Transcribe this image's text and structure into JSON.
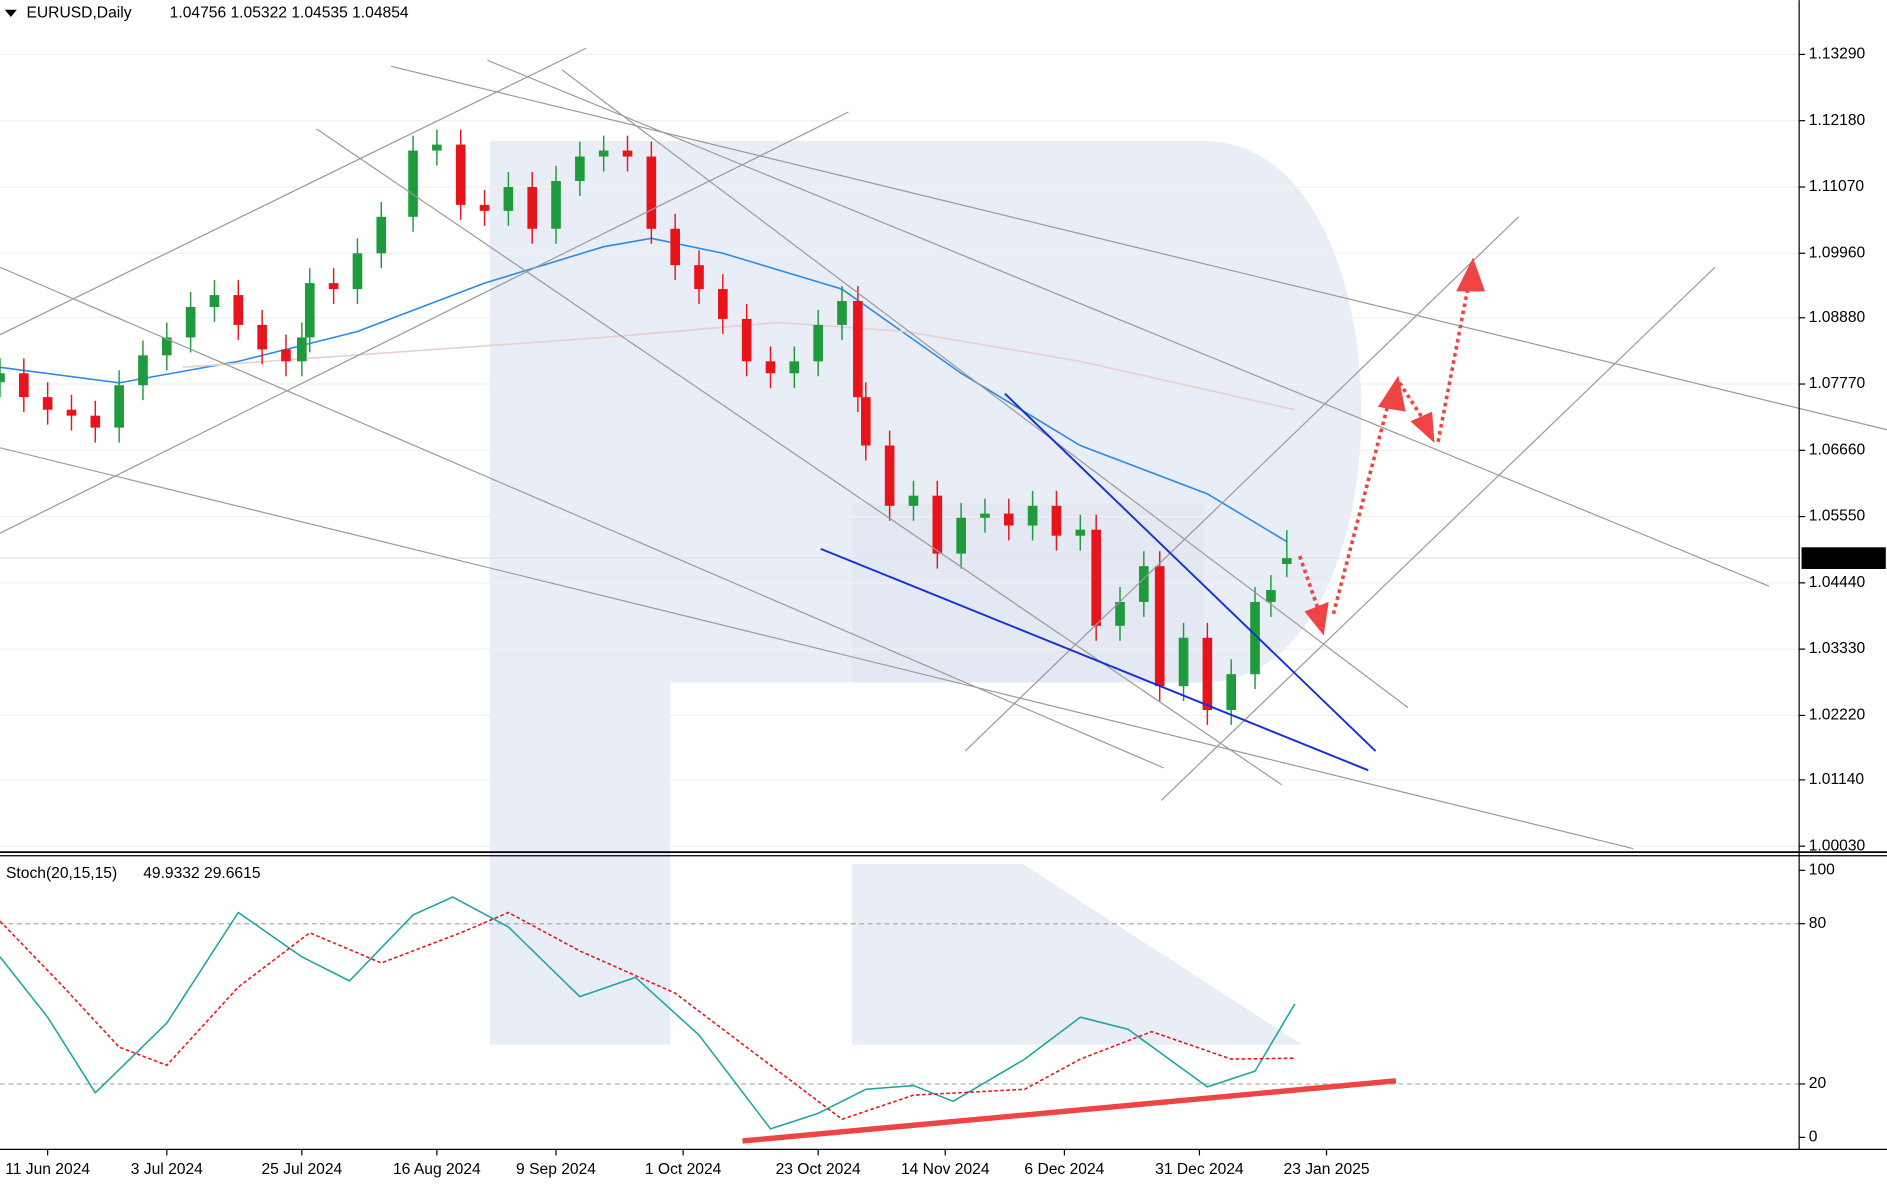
{
  "chart_data": [
    {
      "type": "candlestick",
      "title": "EURUSD,Daily",
      "subtitle": "1.04756 1.05322 1.04535 1.04854",
      "x": [
        0,
        3,
        6,
        9,
        12,
        15,
        18,
        21,
        24,
        27,
        30,
        33,
        36,
        38,
        39,
        42,
        45,
        48,
        52,
        55,
        58,
        61,
        64,
        67,
        70,
        73,
        76,
        79,
        82,
        85,
        88,
        91,
        94,
        97,
        100,
        103,
        106,
        108,
        109,
        112,
        115,
        118,
        121,
        124,
        127,
        130,
        133,
        136,
        138,
        141,
        144,
        146,
        149,
        152,
        155,
        158,
        160,
        162
      ],
      "open": [
        1.078,
        1.0795,
        1.0755,
        1.0734,
        1.0724,
        1.0704,
        1.0775,
        1.0825,
        1.0855,
        1.0906,
        1.0926,
        1.0876,
        1.0835,
        1.0815,
        1.0855,
        1.0946,
        1.0936,
        1.0996,
        1.1057,
        1.1168,
        1.1178,
        1.1077,
        1.1067,
        1.1107,
        1.1037,
        1.1117,
        1.1158,
        1.1168,
        1.1158,
        1.1037,
        1.0976,
        1.0936,
        1.0886,
        1.0815,
        1.0795,
        1.0815,
        1.0876,
        1.0916,
        1.0755,
        1.0674,
        1.0573,
        1.059,
        1.0493,
        1.0553,
        1.056,
        1.054,
        1.0573,
        1.0523,
        1.0533,
        1.0372,
        1.0412,
        1.0472,
        1.0271,
        1.0352,
        1.0231,
        1.0291,
        1.0412,
        1.04756
      ],
      "high": [
        1.082,
        1.082,
        1.078,
        1.0759,
        1.0749,
        1.08,
        1.085,
        1.088,
        1.0931,
        1.0951,
        1.0951,
        1.0901,
        1.086,
        1.088,
        1.0971,
        1.0971,
        1.1021,
        1.1082,
        1.1193,
        1.1203,
        1.1203,
        1.1102,
        1.1132,
        1.1132,
        1.1142,
        1.1183,
        1.1193,
        1.1193,
        1.1183,
        1.1062,
        1.1001,
        1.0961,
        1.0911,
        1.084,
        1.084,
        1.0901,
        1.0941,
        1.0941,
        1.078,
        1.0699,
        1.0615,
        1.0615,
        1.0578,
        1.0585,
        1.0585,
        1.0598,
        1.0598,
        1.0558,
        1.0558,
        1.0437,
        1.0497,
        1.0497,
        1.0377,
        1.0377,
        1.0316,
        1.0437,
        1.0457,
        1.05322
      ],
      "low": [
        1.0755,
        1.073,
        1.0709,
        1.0699,
        1.0679,
        1.0679,
        1.075,
        1.08,
        1.083,
        1.0881,
        1.0851,
        1.081,
        1.079,
        1.079,
        1.083,
        1.0911,
        1.0911,
        1.0971,
        1.1032,
        1.1143,
        1.1052,
        1.1042,
        1.1042,
        1.1012,
        1.1012,
        1.1092,
        1.1133,
        1.1133,
        1.1012,
        1.0951,
        1.0911,
        1.0861,
        1.079,
        1.077,
        1.077,
        1.079,
        1.0851,
        1.073,
        1.0649,
        1.0548,
        1.0548,
        1.0468,
        1.0468,
        1.0528,
        1.0515,
        1.0515,
        1.0498,
        1.0498,
        1.0347,
        1.0347,
        1.0387,
        1.0246,
        1.0246,
        1.0206,
        1.0206,
        1.0266,
        1.0387,
        1.04535
      ],
      "close": [
        1.0795,
        1.0755,
        1.0734,
        1.0724,
        1.0704,
        1.0775,
        1.0825,
        1.0855,
        1.0906,
        1.0926,
        1.0876,
        1.0835,
        1.0815,
        1.0855,
        1.0946,
        1.0936,
        1.0996,
        1.1057,
        1.1168,
        1.1178,
        1.1077,
        1.1067,
        1.1107,
        1.1037,
        1.1117,
        1.1158,
        1.1168,
        1.1158,
        1.1037,
        1.0976,
        1.0936,
        1.0886,
        1.0815,
        1.0795,
        1.0815,
        1.0876,
        1.0916,
        1.0755,
        1.0674,
        1.0573,
        1.059,
        1.0493,
        1.0553,
        1.056,
        1.054,
        1.0573,
        1.0523,
        1.0533,
        1.0372,
        1.0412,
        1.0472,
        1.0271,
        1.0352,
        1.0231,
        1.0291,
        1.0412,
        1.0432,
        1.04854
      ],
      "up_color": "#1f9a3c",
      "down_color": "#e8141b",
      "series": [
        {
          "color": "#2a8ae6",
          "x": [
            0,
            15,
            30,
            45,
            61,
            76,
            82,
            91,
            106,
            121,
            136,
            152,
            162
          ],
          "values": [
            1.0805,
            1.0779,
            1.0815,
            1.0865,
            1.0946,
            1.1007,
            1.1021,
            1.0996,
            1.0936,
            1.0795,
            1.0674,
            1.0593,
            1.0513
          ]
        },
        {
          "color": "#e6cfcf",
          "x": [
            23,
            76,
            98,
            114,
            136,
            163
          ],
          "values": [
            1.0805,
            1.0855,
            1.088,
            1.0865,
            1.0815,
            1.0734
          ]
        }
      ],
      "last_price": {
        "value": 1.04854,
        "label": "1.04854"
      },
      "xlim": [
        0,
        226.5
      ],
      "xticks": [
        {
          "value": 6,
          "label": "11 Jun 2024"
        },
        {
          "value": 21,
          "label": "3 Jul 2024"
        },
        {
          "value": 38,
          "label": "25 Jul 2024"
        },
        {
          "value": 55,
          "label": "16 Aug 2024"
        },
        {
          "value": 70,
          "label": "9 Sep 2024"
        },
        {
          "value": 86,
          "label": "1 Oct 2024"
        },
        {
          "value": 103,
          "label": "23 Oct 2024"
        },
        {
          "value": 119,
          "label": "14 Nov 2024"
        },
        {
          "value": 134,
          "label": "6 Dec 2024"
        },
        {
          "value": 151,
          "label": "31 Dec 2024"
        },
        {
          "value": 167,
          "label": "23 Jan 2025"
        }
      ],
      "ylim": [
        0.9993,
        1.142
      ],
      "yticks": [
        {
          "value": 1.1329,
          "label": "1.13290"
        },
        {
          "value": 1.1218,
          "label": "1.12180"
        },
        {
          "value": 1.1107,
          "label": "1.11070"
        },
        {
          "value": 1.0996,
          "label": "1.09960"
        },
        {
          "value": 1.0888,
          "label": "1.08880"
        },
        {
          "value": 1.0777,
          "label": "1.07770"
        },
        {
          "value": 1.0666,
          "label": "1.06660"
        },
        {
          "value": 1.0555,
          "label": "1.05550"
        },
        {
          "value": 1.0444,
          "label": "1.04440"
        },
        {
          "value": 1.0333,
          "label": "1.03330"
        },
        {
          "value": 1.0222,
          "label": "1.02220"
        },
        {
          "value": 1.0114,
          "label": "1.01140"
        },
        {
          "value": 1.0003,
          "label": "1.00030"
        }
      ],
      "grid": true
    },
    {
      "type": "line",
      "title": "Stoch(20,15,15)",
      "subtitle": "49.9332 29.6615",
      "series": [
        {
          "color": "#1aa6a0",
          "dashed": false,
          "x": [
            0,
            6,
            12,
            21,
            30,
            38,
            44,
            52,
            57,
            64,
            73,
            80,
            88,
            97,
            103,
            109,
            115,
            120,
            129,
            136,
            142,
            152,
            158,
            163
          ],
          "values": [
            67.6,
            45,
            16.7,
            42.8,
            84.2,
            67.6,
            58.6,
            83.3,
            90,
            78.8,
            52.7,
            59.9,
            38.3,
            3.2,
            9,
            18,
            19.4,
            13.5,
            29.3,
            45,
            40.5,
            18.9,
            24.8,
            49.9332
          ]
        },
        {
          "color": "#e8141b",
          "dashed": true,
          "x": [
            0,
            8,
            15,
            21,
            30,
            39,
            48,
            58,
            64,
            73,
            85,
            95,
            106,
            115,
            129,
            136,
            145,
            155,
            163
          ],
          "values": [
            81,
            56.3,
            33.8,
            27,
            56.3,
            76.6,
            65.3,
            76.6,
            84.2,
            69.8,
            54,
            31.5,
            6.8,
            15.8,
            18,
            29.3,
            39.6,
            29.3,
            29.6615
          ]
        }
      ],
      "xlim": [
        0,
        226.5
      ],
      "ylim": [
        -4.5,
        105
      ],
      "yticks": [
        0,
        20,
        80,
        100
      ],
      "levels": [
        20,
        80
      ]
    }
  ]
}
